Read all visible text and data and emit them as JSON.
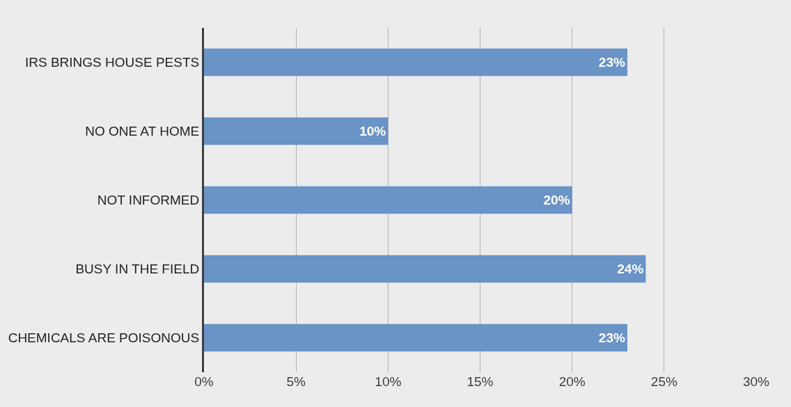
{
  "chart_data": {
    "type": "bar",
    "orientation": "horizontal",
    "categories": [
      "IRS BRINGS HOUSE PESTS",
      "NO ONE AT HOME",
      "NOT INFORMED",
      "BUSY IN THE FIELD",
      "CHEMICALS ARE POISONOUS"
    ],
    "values": [
      23,
      10,
      20,
      24,
      23
    ],
    "value_labels": [
      "23%",
      "10%",
      "20%",
      "24%",
      "23%"
    ],
    "color": "#6a93c6",
    "xlim": [
      0,
      30
    ],
    "xticks": [
      {
        "value": 0,
        "label": "0%"
      },
      {
        "value": 5,
        "label": "5%"
      },
      {
        "value": 10,
        "label": "10%"
      },
      {
        "value": 15,
        "label": "15%"
      },
      {
        "value": 20,
        "label": "20%"
      },
      {
        "value": 25,
        "label": "25%"
      },
      {
        "value": 30,
        "label": "30%"
      }
    ],
    "grid": "x"
  }
}
